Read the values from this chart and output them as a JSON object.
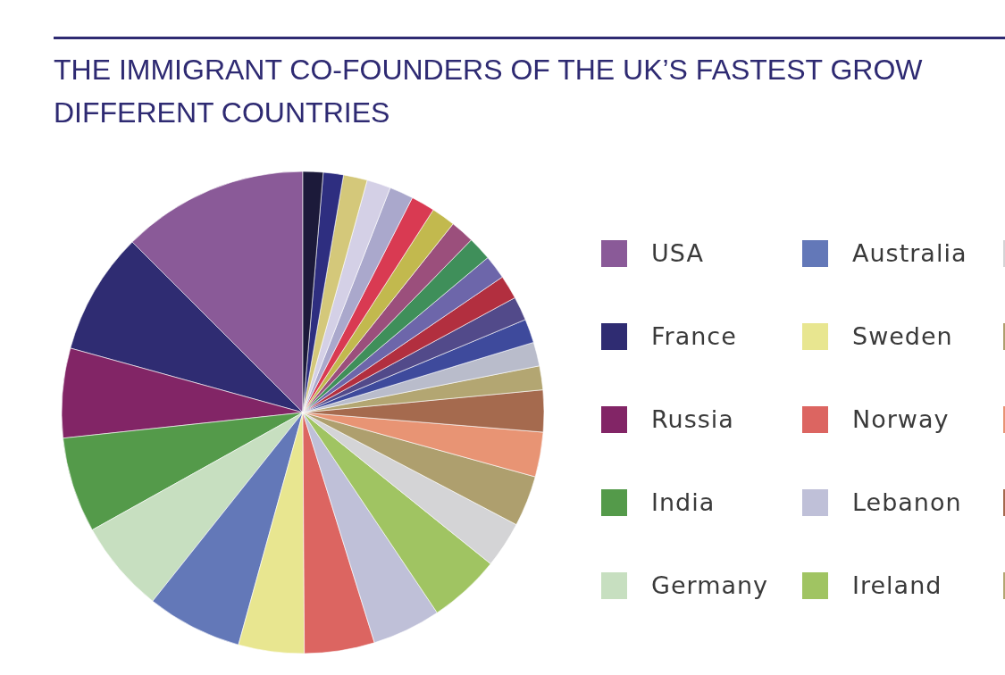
{
  "chart_data": {
    "type": "pie",
    "title": "THE IMMIGRANT CO-FOUNDERS OF THE UK’S FASTEST GROW\nDIFFERENT COUNTRIES",
    "categories": [
      "USA",
      "France",
      "Russia",
      "India",
      "Germany",
      "Australia",
      "Sweden",
      "Norway",
      "Lebanon",
      "Ireland",
      null,
      null,
      null,
      null,
      null,
      null,
      null,
      null,
      null,
      null,
      null,
      null,
      null,
      null,
      null,
      null,
      null,
      null,
      null
    ],
    "values": [
      12.5,
      8.2,
      6.0,
      6.4,
      6.2,
      6.4,
      4.4,
      4.7,
      4.6,
      4.8,
      3.1,
      3.4,
      3.0,
      2.8,
      1.6,
      1.6,
      1.6,
      1.6,
      1.6,
      1.6,
      1.6,
      1.6,
      1.6,
      1.6,
      1.6,
      1.6,
      1.6,
      1.35,
      1.35
    ],
    "colors": [
      "#8a5a98",
      "#2f2c72",
      "#822566",
      "#549a4a",
      "#c7dfc0",
      "#6378b8",
      "#e8e690",
      "#dc6561",
      "#bfc0d8",
      "#a0c462",
      "#d4d4d6",
      "#ae9f6e",
      "#e89474",
      "#a56a4e",
      "#b3a672",
      "#b9bccb",
      "#3e4a9c",
      "#524a8a",
      "#b22f3f",
      "#6d66aa",
      "#3f8f5a",
      "#9b4f7c",
      "#c2b94e",
      "#d93a52",
      "#aaa8cc",
      "#d4d0e6",
      "#d4c87a",
      "#2e2e80",
      "#1c1a3a"
    ],
    "legend": "right"
  }
}
